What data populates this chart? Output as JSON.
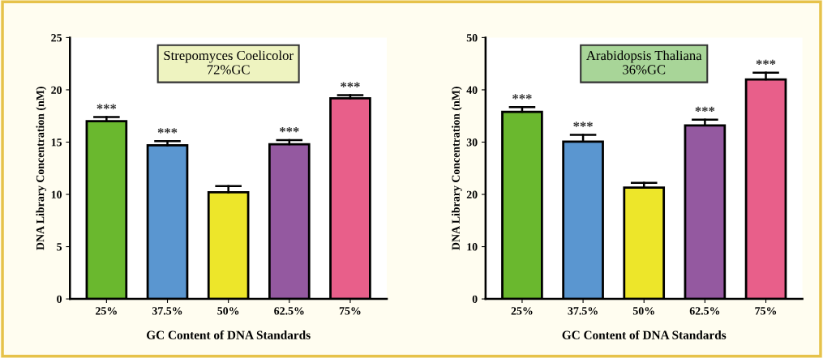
{
  "chart_data": [
    {
      "type": "bar",
      "title": "Strepomyces Coelicolor\n72%GC",
      "xlabel": "GC Content of DNA Standards",
      "ylabel": "DNA Library Concentration (nM)",
      "categories": [
        "25%",
        "37.5%",
        "50%",
        "62.5%",
        "75%"
      ],
      "values": [
        17.0,
        14.7,
        10.2,
        14.8,
        19.2
      ],
      "colors": [
        "#6ab82e",
        "#5a96d0",
        "#ede62a",
        "#9459a0",
        "#e85f8a"
      ],
      "errors": [
        [
          17.0,
          17.4
        ],
        [
          14.7,
          15.1
        ],
        [
          10.2,
          10.8
        ],
        [
          14.8,
          15.2
        ],
        [
          19.2,
          19.5
        ]
      ],
      "ylim": [
        0,
        25
      ],
      "yticks": [
        0,
        5,
        10,
        15,
        20,
        25
      ],
      "annotations": [
        {
          "text": "***",
          "x": "25%",
          "y": 17.4
        },
        {
          "text": "***",
          "x": "37.5%",
          "y": 15.1
        },
        {
          "text": "***",
          "x": "62.5%",
          "y": 15.2
        },
        {
          "text": "***",
          "x": "75%",
          "y": 19.5
        }
      ]
    },
    {
      "type": "bar",
      "title": "Arabidopsis Thaliana\n36%GC",
      "xlabel": "GC Content of DNA Standards",
      "ylabel": "DNA Library Concentration (nM)",
      "categories": [
        "25%",
        "37.5%",
        "50%",
        "62.5%",
        "75%"
      ],
      "values": [
        35.8,
        30.1,
        21.3,
        33.2,
        42.0
      ],
      "colors": [
        "#6ab82e",
        "#5a96d0",
        "#ede62a",
        "#9459a0",
        "#e85f8a"
      ],
      "errors": [
        [
          35.8,
          36.7
        ],
        [
          30.1,
          31.4
        ],
        [
          21.3,
          22.2
        ],
        [
          33.2,
          34.3
        ],
        [
          42.0,
          43.3
        ]
      ],
      "ylim": [
        0,
        50
      ],
      "yticks": [
        0,
        10,
        20,
        30,
        40,
        50
      ],
      "annotations": [
        {
          "text": "***",
          "x": "25%",
          "y": 36.7
        },
        {
          "text": "***",
          "x": "37.5%",
          "y": 31.4
        },
        {
          "text": "***",
          "x": "62.5%",
          "y": 34.3
        },
        {
          "text": "***",
          "x": "75%",
          "y": 43.3
        }
      ]
    }
  ]
}
